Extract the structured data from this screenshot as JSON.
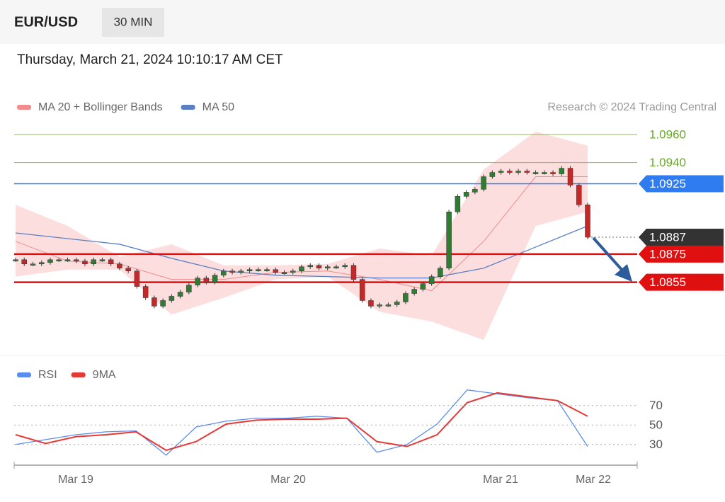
{
  "header": {
    "symbol": "EUR/USD",
    "interval": "30 MIN",
    "timestamp": "Thursday, March 21, 2024 10:10:17 AM CET"
  },
  "chart_data": [
    {
      "type": "candlestick",
      "credit": "Research © 2024 Trading Central",
      "x_labels": [
        "Mar 19",
        "Mar 20",
        "Mar 21",
        "Mar 22"
      ],
      "close": [
        1.0871,
        1.0868,
        1.0868,
        1.0869,
        1.0871,
        1.0871,
        1.0871,
        1.087,
        1.0868,
        1.0871,
        1.0871,
        1.0868,
        1.0865,
        1.0863,
        1.0852,
        1.0844,
        1.0838,
        1.0842,
        1.0845,
        1.0848,
        1.0853,
        1.0858,
        1.0855,
        1.086,
        1.0863,
        1.0862,
        1.0863,
        1.0864,
        1.0864,
        1.0864,
        1.0862,
        1.0862,
        1.0863,
        1.0866,
        1.0867,
        1.0865,
        1.0866,
        1.0866,
        1.0867,
        1.0857,
        1.0842,
        1.0838,
        1.0839,
        1.0839,
        1.0841,
        1.0847,
        1.085,
        1.0854,
        1.0859,
        1.0865,
        1.0905,
        1.0916,
        1.0919,
        1.0921,
        1.093,
        1.0933,
        1.0934,
        1.0933,
        1.0934,
        1.0933,
        1.0933,
        1.0933,
        1.0932,
        1.0936,
        1.0924,
        1.091,
        1.0887
      ],
      "up_color": "#2e7d32",
      "down_color": "#c62828",
      "series": [
        {
          "name": "MA 20 + Bollinger Bands",
          "color": "#f28b8b",
          "band_color": "#fbd3d3",
          "values": [
            1.0884,
            1.087,
            1.0868,
            1.0857,
            1.0857,
            1.0862,
            1.0863,
            1.0857,
            1.0849,
            1.0884,
            1.093,
            1.093
          ],
          "upper": [
            1.091,
            1.0895,
            1.0873,
            1.0882,
            1.0867,
            1.0867,
            1.0868,
            1.0879,
            1.0874,
            1.0935,
            1.0962,
            1.0952
          ],
          "lower": [
            1.0859,
            1.0864,
            1.0864,
            1.0832,
            1.0844,
            1.0857,
            1.0859,
            1.0834,
            1.0827,
            1.0814,
            1.0895,
            1.0905
          ]
        },
        {
          "name": "MA 50",
          "color": "#5b7fc4",
          "values": [
            1.089,
            1.0886,
            1.0882,
            1.0872,
            1.0863,
            1.086,
            1.0859,
            1.0858,
            1.0858,
            1.0865,
            1.088,
            1.0895
          ]
        }
      ],
      "ylim": [
        1.0804,
        1.097
      ],
      "levels": [
        {
          "value": 1.096,
          "label": "1.0960",
          "color": "#8bc34a",
          "tag": false,
          "dashed": false
        },
        {
          "value": 1.094,
          "label": "1.0940",
          "color": "#8bc34a",
          "tag": false,
          "dashed": false
        },
        {
          "value": 1.0925,
          "label": "1.0925",
          "color": "#2f7cf0",
          "tag": true,
          "dashed": false
        },
        {
          "value": 1.0887,
          "label": "1.0887",
          "color": "#333333",
          "tag": true,
          "dashed": true
        },
        {
          "value": 1.0875,
          "label": "1.0875",
          "color": "#e01010",
          "tag": true,
          "dashed": false
        },
        {
          "value": 1.0855,
          "label": "1.0855",
          "color": "#e01010",
          "tag": true,
          "dashed": false
        }
      ]
    },
    {
      "type": "line",
      "series": [
        {
          "name": "RSI",
          "color": "#5b8def",
          "values": [
            30,
            35,
            40,
            43,
            44,
            19,
            48,
            54,
            57,
            57,
            59,
            57,
            22,
            30,
            51,
            86,
            82,
            78,
            75,
            28
          ]
        },
        {
          "name": "9MA",
          "color": "#e53935",
          "values": [
            40,
            31,
            38,
            40,
            43,
            24,
            33,
            51,
            55,
            56,
            56,
            57,
            33,
            28,
            40,
            73,
            83,
            79,
            75,
            59
          ]
        }
      ],
      "ylim": [
        16,
        88
      ],
      "yticks": [
        70,
        50,
        30
      ]
    }
  ]
}
